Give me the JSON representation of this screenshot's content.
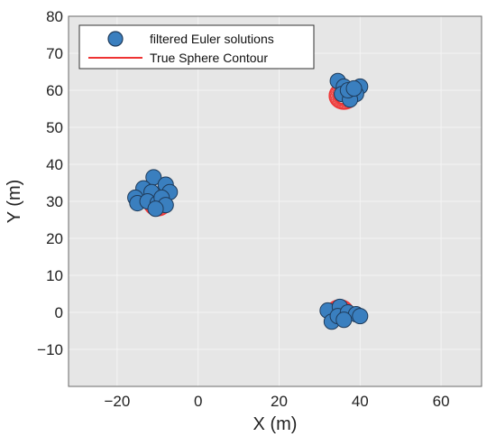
{
  "chart_data": {
    "type": "scatter",
    "xlabel": "X (m)",
    "ylabel": "Y (m)",
    "xlim": [
      -32,
      70
    ],
    "ylim": [
      -20,
      80
    ],
    "x_ticks": [
      -20,
      0,
      20,
      40,
      60
    ],
    "y_ticks": [
      -10,
      0,
      10,
      20,
      30,
      40,
      50,
      60,
      70,
      80
    ],
    "x_tick_labels": [
      "−20",
      "0",
      "20",
      "40",
      "60"
    ],
    "y_tick_labels": [
      "−10",
      "0",
      "10",
      "20",
      "30",
      "40",
      "50",
      "60",
      "70",
      "80"
    ],
    "grid": true,
    "legend_position": "top-left",
    "colors": {
      "background": "#e6e6e6",
      "grid": "#f4f4f4",
      "marker_fill": "#3a7fbf",
      "marker_edge": "#1f3b5a",
      "contour": "#ee3333"
    },
    "series": [
      {
        "name": "filtered Euler solutions",
        "kind": "marker",
        "points": [
          {
            "x": -11,
            "y": 36.5
          },
          {
            "x": -8,
            "y": 34.5
          },
          {
            "x": -13.5,
            "y": 33.5
          },
          {
            "x": -15.5,
            "y": 31
          },
          {
            "x": -15,
            "y": 29.5
          },
          {
            "x": -11.5,
            "y": 32.5
          },
          {
            "x": -7,
            "y": 32.5
          },
          {
            "x": -12.5,
            "y": 30
          },
          {
            "x": -10,
            "y": 29.5
          },
          {
            "x": -9,
            "y": 31
          },
          {
            "x": -8,
            "y": 29
          },
          {
            "x": -10.5,
            "y": 28
          },
          {
            "x": 34.5,
            "y": 62.5
          },
          {
            "x": 36,
            "y": 61
          },
          {
            "x": 40,
            "y": 61
          },
          {
            "x": 39,
            "y": 59
          },
          {
            "x": 35.5,
            "y": 59
          },
          {
            "x": 37.5,
            "y": 57.5
          },
          {
            "x": 37,
            "y": 60
          },
          {
            "x": 38.5,
            "y": 60.5
          },
          {
            "x": 32,
            "y": 0.5
          },
          {
            "x": 33,
            "y": -2.5
          },
          {
            "x": 35,
            "y": 1.5
          },
          {
            "x": 34.5,
            "y": -1
          },
          {
            "x": 37,
            "y": 0
          },
          {
            "x": 39,
            "y": -0.5
          },
          {
            "x": 40,
            "y": -1
          },
          {
            "x": 36,
            "y": -2
          }
        ]
      },
      {
        "name": "True Sphere Contour",
        "kind": "contour",
        "contours": [
          {
            "cx": -10,
            "cy": 29.5,
            "radius": 3.4,
            "rings": 14
          },
          {
            "cx": 36,
            "cy": 58.5,
            "radius": 3.6,
            "rings": 14
          },
          {
            "cx": 35,
            "cy": 0,
            "radius": 3.4,
            "rings": 14
          }
        ]
      }
    ]
  }
}
